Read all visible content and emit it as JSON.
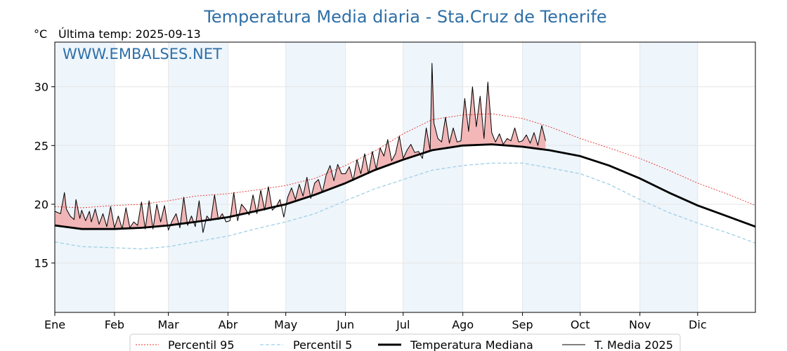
{
  "header": {
    "title": "Temperatura Media diaria - Sta.Cruz de Tenerife",
    "unit": "°C",
    "last_temp": "Última temp: 2025-09-13",
    "watermark": "WWW.EMBALSES.NET"
  },
  "colors": {
    "title": "#2e6fa7",
    "p95": "#e8302a",
    "p5": "#9fd0e6",
    "median": "#000000",
    "media2025": "#000000",
    "above_fill": "#f0a5a5",
    "month_band": "#eef5fb"
  },
  "chart_data": {
    "type": "line",
    "xlabel": "",
    "ylabel": "°C",
    "ylim": [
      10.8,
      33.8
    ],
    "yticks": [
      15,
      20,
      25,
      30
    ],
    "grid": true,
    "legend_position": "bottom-center",
    "month_labels": [
      "Ene",
      "Feb",
      "Mar",
      "Abr",
      "May",
      "Jun",
      "Jul",
      "Ago",
      "Sep",
      "Oct",
      "Nov",
      "Dic"
    ],
    "month_start_days": [
      1,
      32,
      60,
      91,
      121,
      152,
      182,
      213,
      244,
      274,
      305,
      335
    ],
    "shaded_months": [
      "Ene",
      "Mar",
      "May",
      "Jul",
      "Sep",
      "Nov"
    ],
    "x_range_days": [
      1,
      365
    ],
    "series": [
      {
        "name": "Percentil 95",
        "style": "dotted-red",
        "x": [
          1,
          15,
          32,
          46,
          60,
          74,
          91,
          105,
          121,
          136,
          152,
          167,
          182,
          197,
          213,
          228,
          244,
          258,
          274,
          289,
          305,
          320,
          335,
          350,
          365
        ],
        "y": [
          19.8,
          19.7,
          19.9,
          20.0,
          20.3,
          20.7,
          20.9,
          21.2,
          21.6,
          22.2,
          23.3,
          24.5,
          26.0,
          27.2,
          27.6,
          27.7,
          27.3,
          26.6,
          25.6,
          24.8,
          23.9,
          22.9,
          21.8,
          20.9,
          19.9
        ]
      },
      {
        "name": "Percentil 5",
        "style": "dashed-lightblue",
        "x": [
          1,
          15,
          32,
          46,
          60,
          74,
          91,
          105,
          121,
          136,
          152,
          167,
          182,
          197,
          213,
          228,
          244,
          258,
          274,
          289,
          305,
          320,
          335,
          350,
          365
        ],
        "y": [
          16.8,
          16.4,
          16.3,
          16.2,
          16.4,
          16.8,
          17.3,
          17.9,
          18.5,
          19.2,
          20.3,
          21.3,
          22.1,
          22.9,
          23.3,
          23.5,
          23.5,
          23.1,
          22.6,
          21.7,
          20.4,
          19.3,
          18.4,
          17.6,
          16.7
        ]
      },
      {
        "name": "Temperatura Mediana",
        "style": "thick-black",
        "x": [
          1,
          15,
          32,
          46,
          60,
          74,
          91,
          105,
          121,
          136,
          152,
          167,
          182,
          197,
          213,
          228,
          244,
          258,
          274,
          289,
          305,
          320,
          335,
          350,
          365
        ],
        "y": [
          18.2,
          17.9,
          17.9,
          18.0,
          18.2,
          18.5,
          18.9,
          19.4,
          20.0,
          20.8,
          21.8,
          22.9,
          23.8,
          24.6,
          25.0,
          25.1,
          24.9,
          24.6,
          24.1,
          23.3,
          22.2,
          21.0,
          19.9,
          19.0,
          18.1
        ]
      },
      {
        "name": "T. Media 2025",
        "style": "thin-black",
        "x": [
          1,
          4,
          6,
          7,
          9,
          11,
          12,
          14,
          15,
          17,
          19,
          20,
          22,
          24,
          26,
          28,
          30,
          32,
          34,
          36,
          38,
          40,
          42,
          44,
          46,
          48,
          50,
          52,
          54,
          56,
          58,
          60,
          62,
          64,
          66,
          68,
          70,
          72,
          74,
          76,
          78,
          80,
          82,
          84,
          86,
          88,
          90,
          92,
          94,
          96,
          98,
          100,
          102,
          104,
          106,
          108,
          110,
          112,
          114,
          116,
          118,
          120,
          122,
          124,
          126,
          128,
          130,
          132,
          134,
          136,
          138,
          140,
          142,
          144,
          146,
          148,
          150,
          152,
          154,
          156,
          158,
          160,
          162,
          164,
          166,
          168,
          170,
          172,
          174,
          176,
          178,
          180,
          182,
          184,
          186,
          188,
          190,
          192,
          194,
          196,
          197,
          198,
          200,
          202,
          204,
          206,
          208,
          210,
          212,
          214,
          216,
          218,
          220,
          222,
          224,
          226,
          228,
          230,
          232,
          234,
          236,
          238,
          240,
          242,
          244,
          246,
          248,
          250,
          252,
          254,
          256
        ],
        "y": [
          19.4,
          19.2,
          21.0,
          19.6,
          19.0,
          18.7,
          20.4,
          18.8,
          19.5,
          18.6,
          19.4,
          18.5,
          19.6,
          18.3,
          19.2,
          18.1,
          19.8,
          18.0,
          19.0,
          17.9,
          19.7,
          18.0,
          18.5,
          18.2,
          20.2,
          17.9,
          20.3,
          17.9,
          20.0,
          18.5,
          19.9,
          17.8,
          18.6,
          19.2,
          18.0,
          20.6,
          18.2,
          19.0,
          18.1,
          20.3,
          17.6,
          19.0,
          18.6,
          20.8,
          18.7,
          19.2,
          18.5,
          18.6,
          21.0,
          18.6,
          20.0,
          19.6,
          19.1,
          20.8,
          19.2,
          21.2,
          19.5,
          21.5,
          19.5,
          19.8,
          20.4,
          18.9,
          20.6,
          21.4,
          20.4,
          21.7,
          20.7,
          22.3,
          20.5,
          21.8,
          22.1,
          21.0,
          22.5,
          23.3,
          22.0,
          23.4,
          22.6,
          22.6,
          23.2,
          22.0,
          23.8,
          22.6,
          24.3,
          22.6,
          24.5,
          23.0,
          24.8,
          24.1,
          25.5,
          23.7,
          24.3,
          25.8,
          23.9,
          24.6,
          25.1,
          24.4,
          24.5,
          23.9,
          26.5,
          24.6,
          32.0,
          26.9,
          25.6,
          25.3,
          27.4,
          25.2,
          26.5,
          25.3,
          25.4,
          29.0,
          26.2,
          30.0,
          26.6,
          29.2,
          25.6,
          30.4,
          26.1,
          25.3,
          26.0,
          25.1,
          25.6,
          25.4,
          26.5,
          25.3,
          25.4,
          25.9,
          25.2,
          26.1,
          25.0,
          26.7,
          25.4
        ]
      }
    ]
  }
}
